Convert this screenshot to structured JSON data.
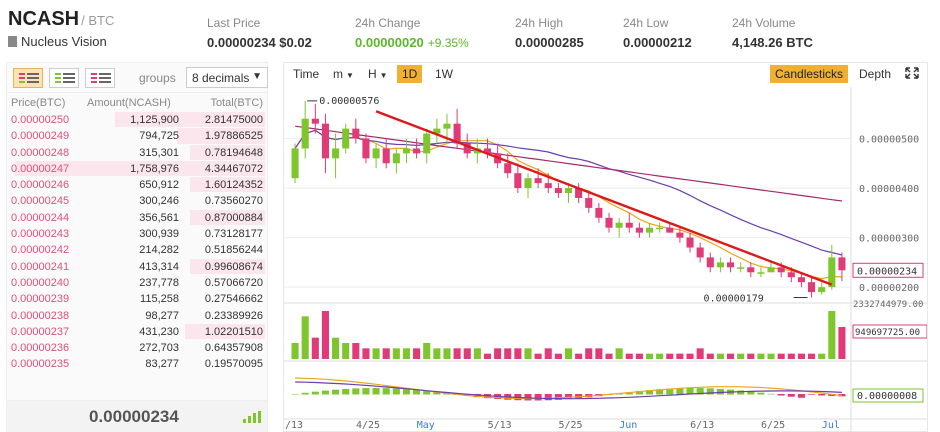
{
  "header": {
    "symbol": "NCASH",
    "quote": "/ BTC",
    "name": "Nucleus Vision",
    "stats": [
      {
        "label": "Last Price",
        "value": "0.00000234 $0.02",
        "extra": "",
        "green": false
      },
      {
        "label": "24h Change",
        "value": "0.00000020",
        "extra": "+9.35%",
        "green": true
      },
      {
        "label": "24h High",
        "value": "0.00000285",
        "extra": "",
        "green": false
      },
      {
        "label": "24h Low",
        "value": "0.00000212",
        "extra": "",
        "green": false
      },
      {
        "label": "24h Volume",
        "value": "4,148.26 BTC",
        "extra": "",
        "green": false
      }
    ]
  },
  "orderbook": {
    "groups_label": "groups",
    "decimals": "8 decimals",
    "columns": [
      "Price(BTC)",
      "Amount(NCASH)",
      "Total(BTC)"
    ],
    "rows": [
      {
        "price": "0.00000250",
        "amount": "1,125,900",
        "total": "2.81475000",
        "depth": 0.6
      },
      {
        "price": "0.00000249",
        "amount": "794,725",
        "total": "1.97886525",
        "depth": 0.35
      },
      {
        "price": "0.00000248",
        "amount": "315,301",
        "total": "0.78194648",
        "depth": 0.3
      },
      {
        "price": "0.00000247",
        "amount": "1,758,976",
        "total": "4.34467072",
        "depth": 1.0
      },
      {
        "price": "0.00000246",
        "amount": "650,912",
        "total": "1.60124352",
        "depth": 0.3
      },
      {
        "price": "0.00000245",
        "amount": "300,246",
        "total": "0.73560270",
        "depth": 0.0
      },
      {
        "price": "0.00000244",
        "amount": "356,561",
        "total": "0.87000884",
        "depth": 0.3
      },
      {
        "price": "0.00000243",
        "amount": "300,939",
        "total": "0.73128177",
        "depth": 0.0
      },
      {
        "price": "0.00000242",
        "amount": "214,282",
        "total": "0.51856244",
        "depth": 0.0
      },
      {
        "price": "0.00000241",
        "amount": "413,314",
        "total": "0.99608674",
        "depth": 0.3
      },
      {
        "price": "0.00000240",
        "amount": "237,778",
        "total": "0.57066720",
        "depth": 0.0
      },
      {
        "price": "0.00000239",
        "amount": "115,258",
        "total": "0.27546662",
        "depth": 0.0
      },
      {
        "price": "0.00000238",
        "amount": "98,277",
        "total": "0.23389926",
        "depth": 0.0
      },
      {
        "price": "0.00000237",
        "amount": "431,230",
        "total": "1.02201510",
        "depth": 0.32
      },
      {
        "price": "0.00000236",
        "amount": "272,703",
        "total": "0.64357908",
        "depth": 0.0
      },
      {
        "price": "0.00000235",
        "amount": "83,277",
        "total": "0.19570095",
        "depth": 0.0
      }
    ],
    "last_price": "0.00000234"
  },
  "chart_toolbar": {
    "time": "Time",
    "minute": "m",
    "hour": "H",
    "day": "1D",
    "week": "1W",
    "candlesticks": "Candlesticks",
    "depth": "Depth"
  },
  "chart_data": {
    "type": "candlestick",
    "y_ticks": [
      "0.00000500",
      "0.00000400",
      "0.00000300",
      "0.00000200"
    ],
    "current_price_label": "0.00000234",
    "high_annotation": "0.00000576",
    "low_annotation": "0.00000179",
    "volume_axis_label": "2332744979.00",
    "volume_current_label": "949697725.00",
    "macd_current_label": "0.00000008",
    "x_labels": [
      "/13",
      "4/25",
      "May",
      "5/13",
      "5/25",
      "Jun",
      "6/13",
      "6/25",
      "Jul"
    ],
    "ylim": [
      1.7e-06,
      6e-06
    ],
    "candles": [
      [
        4.2,
        4.9,
        4.1,
        4.8
      ],
      [
        4.8,
        5.76,
        4.6,
        5.4
      ],
      [
        5.4,
        5.7,
        5.1,
        5.3
      ],
      [
        5.3,
        5.5,
        4.3,
        4.6
      ],
      [
        4.6,
        5.1,
        4.2,
        4.8
      ],
      [
        4.8,
        5.3,
        4.7,
        5.2
      ],
      [
        5.2,
        5.4,
        4.9,
        5.0
      ],
      [
        5.0,
        5.1,
        4.5,
        4.6
      ],
      [
        4.6,
        4.9,
        4.4,
        4.8
      ],
      [
        4.8,
        5.0,
        4.4,
        4.5
      ],
      [
        4.5,
        4.8,
        4.3,
        4.7
      ],
      [
        4.7,
        5.0,
        4.5,
        4.8
      ],
      [
        4.8,
        5.0,
        4.6,
        4.7
      ],
      [
        4.7,
        5.2,
        4.5,
        5.1
      ],
      [
        5.1,
        5.4,
        4.9,
        5.2
      ],
      [
        5.2,
        5.5,
        4.9,
        5.3
      ],
      [
        5.3,
        5.6,
        4.8,
        4.9
      ],
      [
        4.9,
        5.1,
        4.6,
        4.7
      ],
      [
        4.7,
        5.0,
        4.5,
        4.8
      ],
      [
        4.8,
        5.0,
        4.6,
        4.7
      ],
      [
        4.7,
        4.9,
        4.4,
        4.5
      ],
      [
        4.5,
        4.7,
        4.2,
        4.3
      ],
      [
        4.3,
        4.5,
        3.9,
        4.0
      ],
      [
        4.0,
        4.3,
        3.8,
        4.2
      ],
      [
        4.2,
        4.4,
        4.0,
        4.1
      ],
      [
        4.1,
        4.3,
        3.9,
        4.0
      ],
      [
        4.0,
        4.1,
        3.8,
        3.9
      ],
      [
        3.9,
        4.1,
        3.7,
        4.0
      ],
      [
        4.0,
        4.1,
        3.7,
        3.8
      ],
      [
        3.8,
        3.9,
        3.5,
        3.6
      ],
      [
        3.6,
        3.7,
        3.3,
        3.4
      ],
      [
        3.4,
        3.5,
        3.1,
        3.2
      ],
      [
        3.2,
        3.4,
        3.0,
        3.3
      ],
      [
        3.3,
        3.5,
        3.1,
        3.2
      ],
      [
        3.2,
        3.3,
        3.0,
        3.1
      ],
      [
        3.1,
        3.3,
        3.0,
        3.2
      ],
      [
        3.2,
        3.3,
        3.1,
        3.2
      ],
      [
        3.2,
        3.3,
        3.1,
        3.1
      ],
      [
        3.1,
        3.2,
        2.9,
        3.0
      ],
      [
        3.0,
        3.1,
        2.7,
        2.8
      ],
      [
        2.8,
        2.9,
        2.5,
        2.6
      ],
      [
        2.6,
        2.7,
        2.3,
        2.4
      ],
      [
        2.4,
        2.6,
        2.3,
        2.5
      ],
      [
        2.5,
        2.6,
        2.3,
        2.4
      ],
      [
        2.4,
        2.5,
        2.3,
        2.4
      ],
      [
        2.4,
        2.5,
        2.2,
        2.3
      ],
      [
        2.3,
        2.4,
        2.2,
        2.3
      ],
      [
        2.3,
        2.5,
        2.3,
        2.4
      ],
      [
        2.4,
        2.5,
        2.2,
        2.3
      ],
      [
        2.3,
        2.4,
        2.1,
        2.2
      ],
      [
        2.2,
        2.3,
        2.0,
        2.1
      ],
      [
        2.1,
        2.2,
        1.79,
        1.9
      ],
      [
        1.9,
        2.1,
        1.85,
        2.0
      ],
      [
        2.0,
        2.85,
        1.95,
        2.6
      ],
      [
        2.6,
        2.7,
        2.12,
        2.34
      ]
    ],
    "volumes": [
      3,
      8,
      4,
      9,
      4,
      3,
      3,
      2,
      2,
      2,
      2,
      2,
      2,
      3,
      2,
      2,
      2,
      2,
      2,
      1,
      2,
      2,
      2,
      2,
      1,
      2,
      1,
      2,
      1,
      2,
      2,
      1,
      2,
      1,
      1,
      1,
      1,
      1,
      1,
      1,
      2,
      1,
      1,
      1,
      1,
      1,
      1,
      1,
      1,
      1,
      1,
      1,
      1,
      9,
      6
    ],
    "trendline": {
      "from": [
        8,
        5.55
      ],
      "to": [
        53,
        2.05
      ]
    }
  },
  "colors": {
    "up": "#7ec52e",
    "down": "#e03a78",
    "ma_fast": "#f0a51a",
    "ma_slow": "#6a3fb0",
    "ma_long": "#a8286e",
    "trend": "#dd1a1a",
    "accent": "#f0b132"
  }
}
